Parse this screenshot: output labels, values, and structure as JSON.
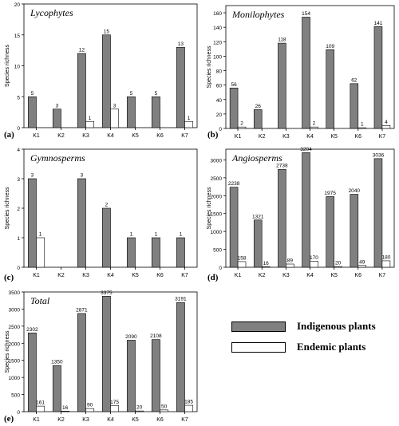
{
  "legend": {
    "indigenous_label": "Indigenous plants",
    "endemic_label": "Endemic plants"
  },
  "colors": {
    "indigenous": "#808080",
    "endemic": "#ffffff",
    "axis": "#000000"
  },
  "chart_data": [
    {
      "type": "bar",
      "panel_label": "(a)",
      "title": "Lycophytes",
      "ylabel": "Species richness",
      "xlabel": "",
      "categories": [
        "K1",
        "K2",
        "K3",
        "K4",
        "K5",
        "K6",
        "K7"
      ],
      "ylim": [
        0,
        20
      ],
      "yticks": [
        0,
        5,
        10,
        15,
        20
      ],
      "grid": false,
      "series": [
        {
          "name": "Indigenous plants",
          "values": [
            5,
            3,
            12,
            15,
            5,
            5,
            13
          ]
        },
        {
          "name": "Endemic plants",
          "values": [
            null,
            null,
            1,
            3,
            null,
            null,
            1
          ]
        }
      ]
    },
    {
      "type": "bar",
      "panel_label": "(b)",
      "title": "Monilophytes",
      "ylabel": "Species richness",
      "xlabel": "",
      "categories": [
        "K1",
        "K2",
        "K3",
        "K4",
        "K5",
        "K6",
        "K7"
      ],
      "ylim": [
        0,
        170
      ],
      "yticks": [
        0,
        20,
        40,
        60,
        80,
        100,
        120,
        140,
        160
      ],
      "grid": false,
      "series": [
        {
          "name": "Indigenous plants",
          "values": [
            56,
            26,
            118,
            154,
            109,
            62,
            141
          ]
        },
        {
          "name": "Endemic plants",
          "values": [
            2,
            null,
            null,
            2,
            null,
            1,
            4
          ]
        }
      ]
    },
    {
      "type": "bar",
      "panel_label": "(c)",
      "title": "Gymnosperms",
      "ylabel": "Species richness",
      "xlabel": "",
      "categories": [
        "K1",
        "K2",
        "K3",
        "K4",
        "K5",
        "K6",
        "K7"
      ],
      "ylim": [
        0,
        4
      ],
      "yticks": [
        0,
        1,
        2,
        3,
        4
      ],
      "grid": false,
      "series": [
        {
          "name": "Indigenous plants",
          "values": [
            3,
            null,
            3,
            2,
            1,
            1,
            1
          ]
        },
        {
          "name": "Endemic plants",
          "values": [
            1,
            null,
            null,
            null,
            null,
            null,
            null
          ]
        }
      ]
    },
    {
      "type": "bar",
      "panel_label": "(d)",
      "title": "Angiosperms",
      "ylabel": "Species richness",
      "xlabel": "",
      "categories": [
        "K1",
        "K2",
        "K3",
        "K4",
        "K5",
        "K6",
        "K7"
      ],
      "ylim": [
        0,
        3300
      ],
      "yticks": [
        0,
        500,
        1000,
        1500,
        2000,
        2500,
        3000
      ],
      "grid": false,
      "series": [
        {
          "name": "Indigenous plants",
          "values": [
            2238,
            1321,
            2738,
            3204,
            1975,
            2040,
            3036
          ]
        },
        {
          "name": "Endemic plants",
          "values": [
            158,
            16,
            89,
            170,
            20,
            49,
            180
          ]
        }
      ]
    },
    {
      "type": "bar",
      "panel_label": "(e)",
      "title": "Total",
      "ylabel": "Species richness",
      "xlabel": "",
      "categories": [
        "K1",
        "K2",
        "K3",
        "K4",
        "K5",
        "K6",
        "K7"
      ],
      "ylim": [
        0,
        3500
      ],
      "yticks": [
        0,
        500,
        1000,
        1500,
        2000,
        2500,
        3000,
        3500
      ],
      "grid": false,
      "series": [
        {
          "name": "Indigenous plants",
          "values": [
            2302,
            1350,
            2871,
            3375,
            2090,
            2108,
            3191
          ]
        },
        {
          "name": "Endemic plants",
          "values": [
            161,
            16,
            90,
            175,
            20,
            50,
            185
          ]
        }
      ]
    }
  ]
}
